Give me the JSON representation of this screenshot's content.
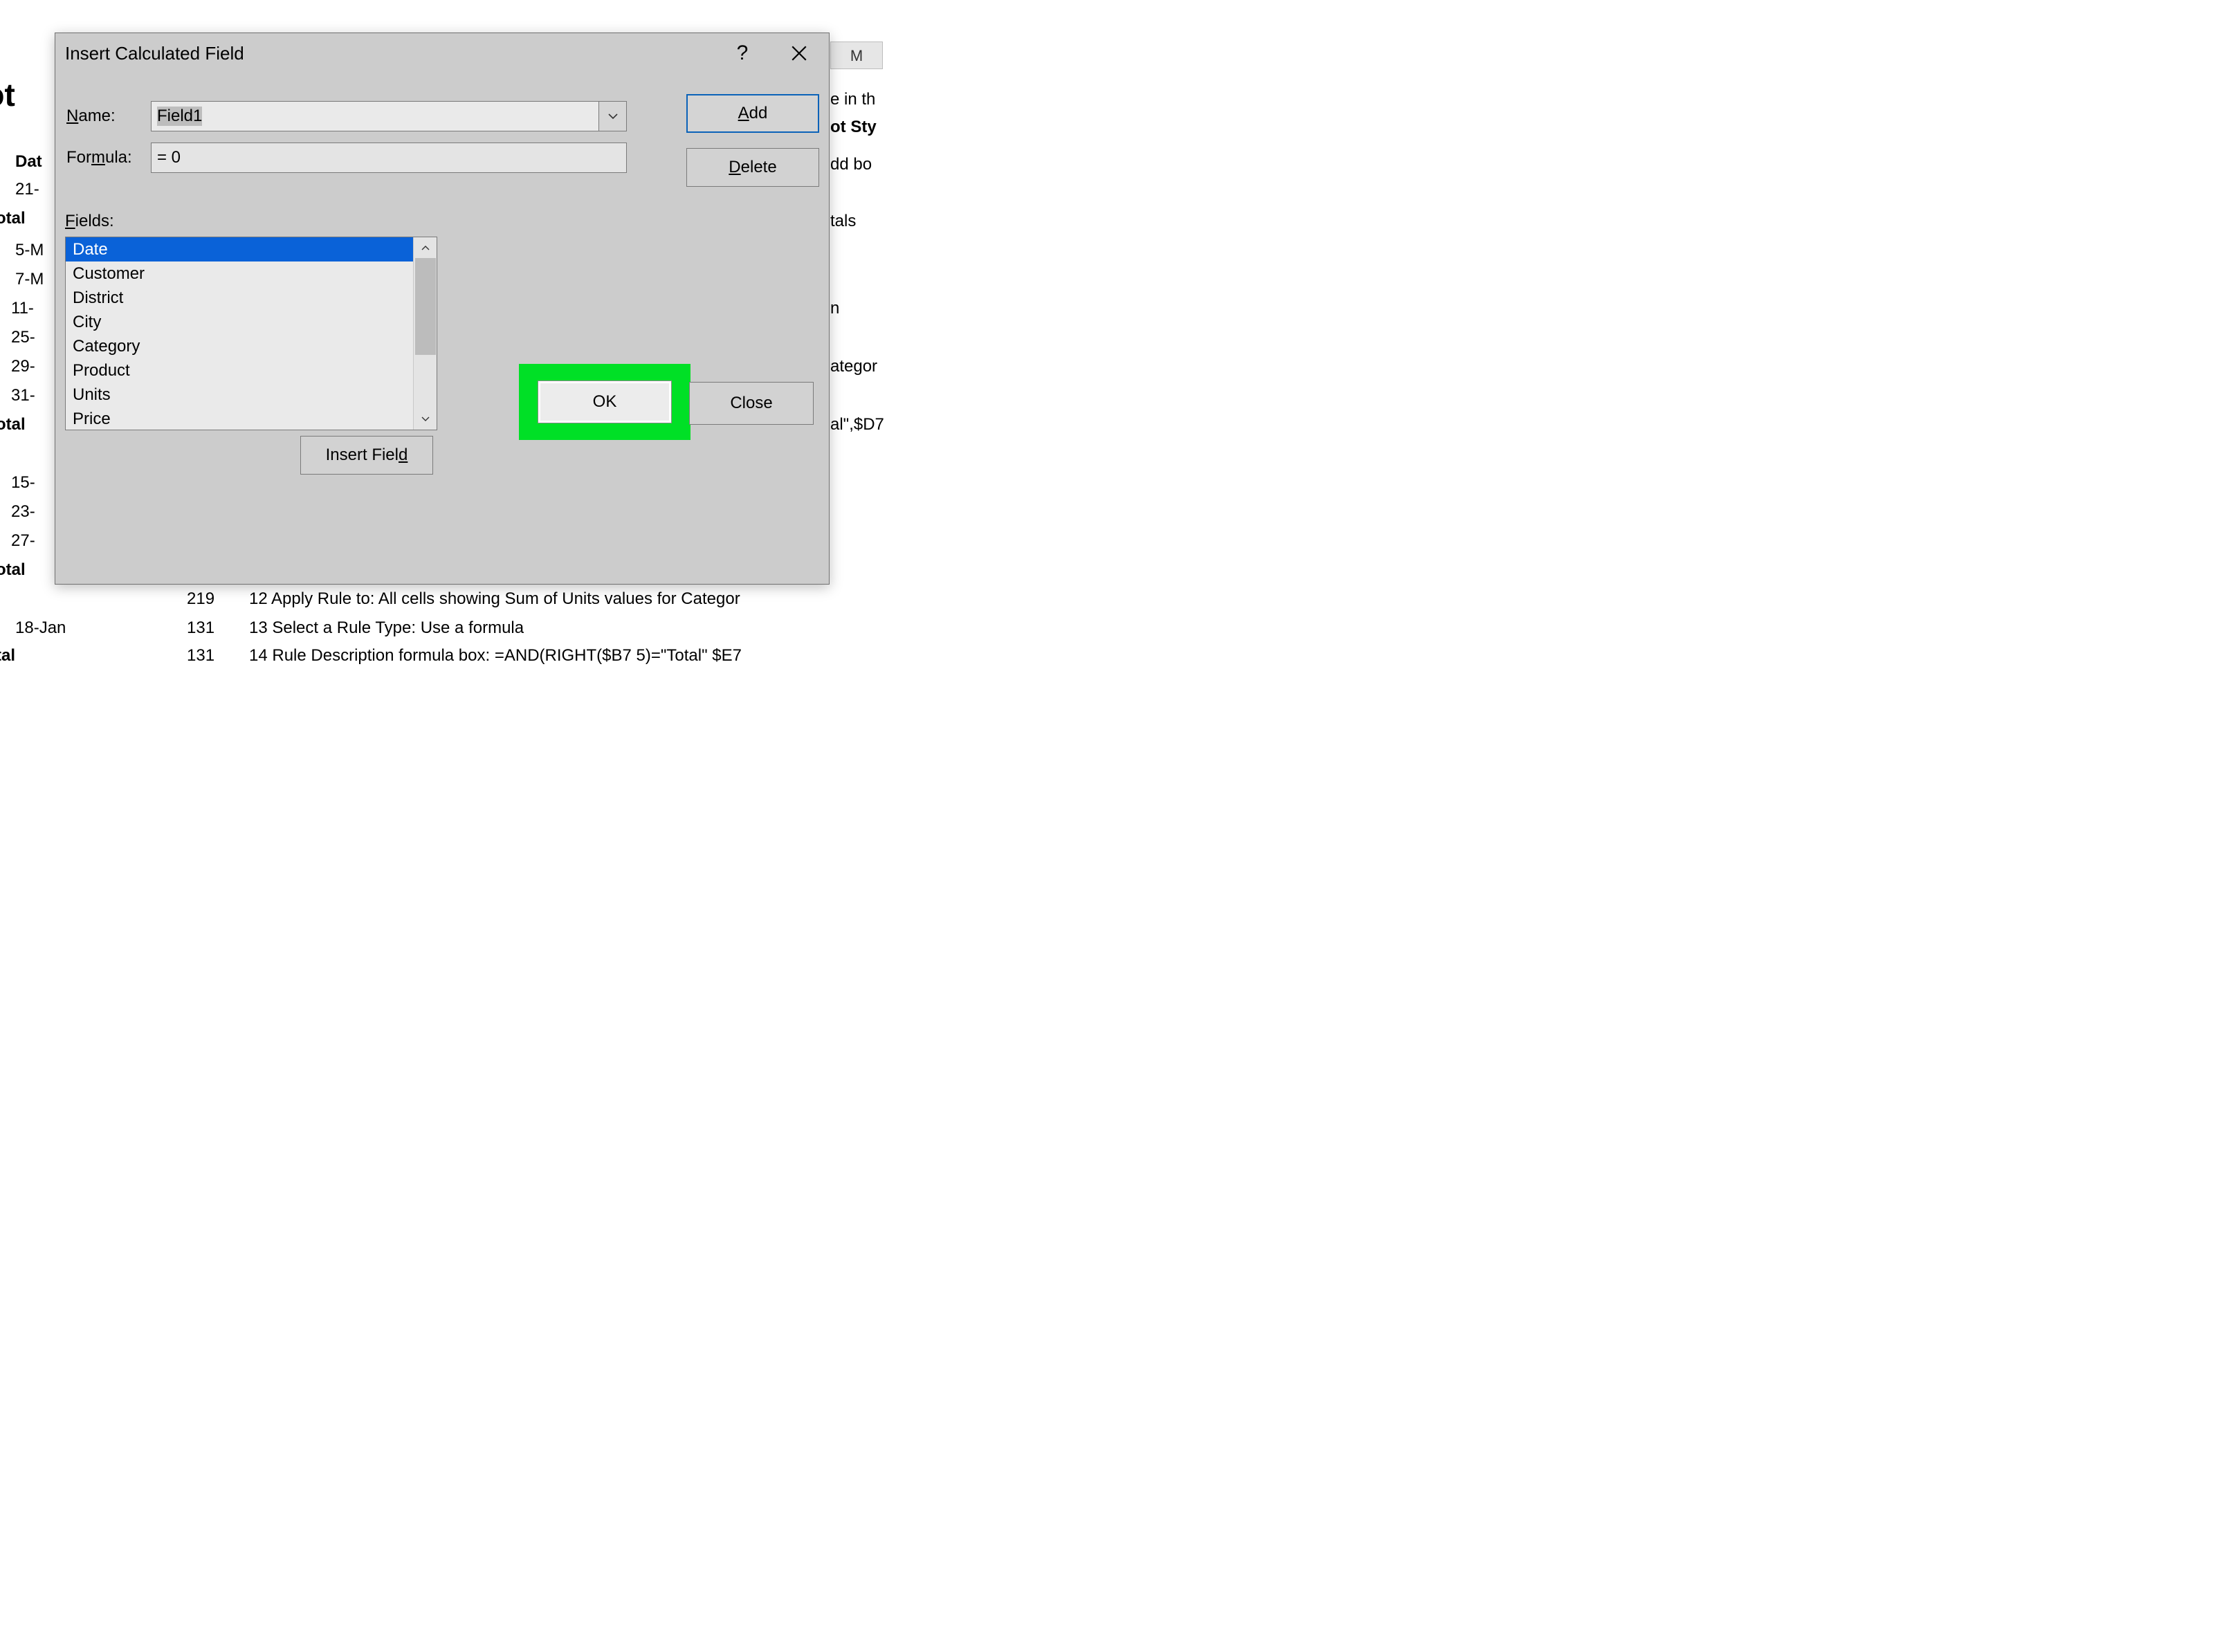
{
  "background": {
    "column_header": "M",
    "pivot_title": "ivot",
    "left_col_header": "Dat",
    "left_rows": [
      "21-",
      "otal",
      "5-M",
      "7-M",
      "11-",
      "25-",
      "29-",
      "31-",
      "otal",
      "",
      "15-",
      "23-",
      "27-",
      "otal",
      "",
      "18-Jan",
      "tal"
    ],
    "mid_col": {
      "r14": "219",
      "r15": "131",
      "r16": "131"
    },
    "right_text": {
      "r1": "e in th",
      "r2": "ot Sty",
      "r3": "dd bo",
      "r4": "tals",
      "r5": "n",
      "r6": "ategor",
      "r7": "al\",$D7",
      "line12": "12 Apply Rule to: All cells showing Sum of Units values for Categor",
      "line13": "13 Select a Rule Type: Use a formula",
      "line14": "14 Rule Description  formula box:  =AND(RIGHT($B7 5)=\"Total\" $E7"
    }
  },
  "dialog": {
    "title": "Insert Calculated Field",
    "help_glyph": "?",
    "name_label_pre": "N",
    "name_label_post": "ame:",
    "name_value": "Field1",
    "formula_label_pre": "For",
    "formula_label_u": "m",
    "formula_label_post": "ula:",
    "formula_value": "= 0",
    "add_pre": "A",
    "add_post": "dd",
    "delete_pre": "D",
    "delete_post": "elete",
    "fields_label_pre": "F",
    "fields_label_post": "ields:",
    "fields": [
      "Date",
      "Customer",
      "District",
      "City",
      "Category",
      "Product",
      "Units",
      "Price"
    ],
    "selected_field_index": 0,
    "insert_field_label": "Insert Fiel",
    "insert_field_u": "d",
    "ok_label": "OK",
    "close_label": "Close",
    "colors": {
      "dialog_bg": "#cccccc",
      "selection_bg": "#0a62d8",
      "selection_fg": "#ffffff",
      "highlight": "#00e026",
      "accent_border": "#0a62b8"
    }
  }
}
